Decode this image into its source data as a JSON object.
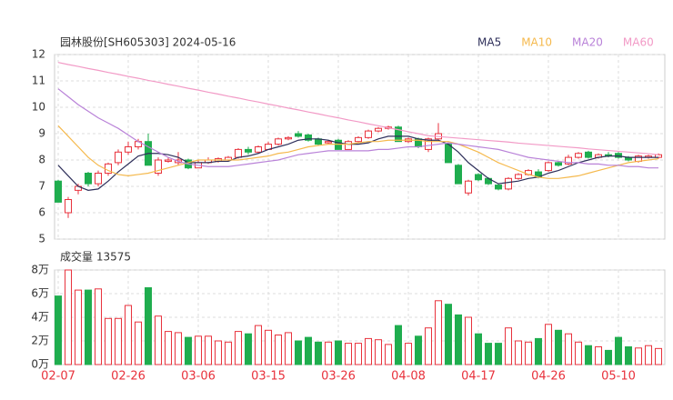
{
  "chart_data": {
    "type": "candlestick",
    "title": "园林股份[SH605303] 2024-05-16",
    "categories": [
      "02-07",
      null,
      null,
      null,
      null,
      null,
      null,
      "02-26",
      null,
      null,
      null,
      null,
      null,
      null,
      "03-06",
      null,
      null,
      null,
      null,
      null,
      null,
      "03-15",
      null,
      null,
      null,
      null,
      null,
      null,
      "03-26",
      null,
      null,
      null,
      null,
      null,
      null,
      "04-08",
      null,
      null,
      null,
      null,
      null,
      null,
      "04-17",
      null,
      null,
      null,
      null,
      null,
      null,
      "04-26",
      null,
      null,
      null,
      null,
      null,
      null,
      "05-10",
      null,
      null,
      null,
      null
    ],
    "open": [
      7.2,
      6.0,
      6.85,
      7.5,
      7.1,
      7.5,
      7.9,
      8.3,
      8.5,
      8.7,
      7.5,
      7.95,
      7.9,
      8.0,
      7.7,
      7.9,
      7.95,
      8.0,
      8.1,
      8.4,
      8.3,
      8.4,
      8.6,
      8.8,
      9.0,
      8.95,
      8.8,
      8.65,
      8.75,
      8.4,
      8.7,
      8.85,
      9.1,
      9.2,
      9.25,
      8.7,
      8.8,
      8.4,
      8.8,
      8.6,
      7.8,
      6.75,
      7.45,
      7.3,
      7.05,
      6.9,
      7.3,
      7.45,
      7.55,
      7.6,
      7.9,
      7.85,
      8.1,
      8.3,
      8.1,
      8.2,
      8.25,
      8.1,
      7.95,
      8.1,
      8.1
    ],
    "high": [
      7.25,
      6.6,
      7.1,
      7.55,
      7.6,
      7.9,
      8.4,
      8.7,
      8.8,
      9.0,
      8.1,
      8.1,
      8.3,
      8.05,
      8.0,
      8.1,
      8.1,
      8.15,
      8.45,
      8.5,
      8.55,
      8.7,
      8.85,
      8.9,
      9.1,
      9.0,
      8.85,
      8.75,
      8.8,
      8.75,
      8.9,
      9.15,
      9.25,
      9.3,
      9.3,
      8.85,
      8.85,
      8.85,
      9.4,
      8.65,
      7.85,
      7.25,
      7.5,
      7.35,
      7.1,
      7.35,
      7.5,
      7.65,
      7.65,
      7.95,
      7.95,
      8.2,
      8.3,
      8.35,
      8.25,
      8.3,
      8.3,
      8.15,
      8.2,
      8.2,
      8.25
    ],
    "low": [
      6.4,
      5.8,
      6.7,
      7.0,
      7.0,
      7.4,
      7.8,
      8.2,
      8.4,
      7.8,
      7.4,
      7.9,
      7.8,
      7.65,
      7.7,
      7.85,
      7.9,
      7.95,
      8.05,
      8.2,
      8.25,
      8.4,
      8.55,
      8.75,
      8.85,
      8.7,
      8.55,
      8.6,
      8.4,
      8.4,
      8.65,
      8.8,
      9.05,
      9.15,
      8.7,
      8.65,
      8.45,
      8.3,
      8.75,
      7.9,
      7.1,
      6.65,
      7.2,
      7.05,
      6.85,
      6.85,
      7.25,
      7.4,
      7.3,
      7.55,
      7.75,
      7.8,
      8.05,
      8.05,
      8.05,
      8.1,
      8.05,
      7.95,
      7.9,
      8.05,
      8.05
    ],
    "close": [
      6.4,
      6.5,
      7.0,
      7.1,
      7.5,
      7.85,
      8.3,
      8.5,
      8.7,
      7.8,
      8.0,
      8.0,
      8.0,
      7.7,
      7.9,
      8.0,
      8.05,
      8.1,
      8.4,
      8.3,
      8.5,
      8.6,
      8.8,
      8.85,
      8.9,
      8.75,
      8.6,
      8.7,
      8.4,
      8.7,
      8.85,
      9.1,
      9.2,
      9.25,
      8.7,
      8.8,
      8.5,
      8.8,
      9.0,
      7.9,
      7.1,
      7.2,
      7.25,
      7.1,
      6.9,
      7.3,
      7.45,
      7.6,
      7.35,
      7.9,
      7.8,
      8.1,
      8.25,
      8.1,
      8.2,
      8.15,
      8.1,
      8.0,
      8.15,
      8.15,
      8.2
    ],
    "up_color": "#e8323c",
    "down_color": "#1fad4e",
    "ylim": [
      5,
      12
    ],
    "yticks": [
      5,
      6,
      7,
      8,
      9,
      10,
      11,
      12
    ],
    "grid": true,
    "series": [
      {
        "name": "MA5",
        "color": "#2e2f5a",
        "values": [
          7.8,
          7.4,
          7.0,
          6.85,
          6.9,
          7.2,
          7.55,
          7.85,
          8.15,
          8.25,
          8.25,
          8.2,
          8.1,
          7.9,
          7.9,
          7.9,
          7.95,
          7.95,
          8.1,
          8.15,
          8.25,
          8.4,
          8.5,
          8.6,
          8.75,
          8.8,
          8.8,
          8.75,
          8.65,
          8.6,
          8.6,
          8.65,
          8.8,
          8.9,
          8.9,
          8.9,
          8.8,
          8.75,
          8.75,
          8.6,
          8.3,
          7.9,
          7.6,
          7.3,
          7.1,
          7.15,
          7.2,
          7.3,
          7.35,
          7.5,
          7.6,
          7.75,
          7.9,
          8.0,
          8.1,
          8.15,
          8.15,
          8.1,
          8.1,
          8.1,
          8.1
        ]
      },
      {
        "name": "MA10",
        "color": "#f5b94d",
        "values": [
          9.3,
          8.9,
          8.5,
          8.1,
          7.8,
          7.6,
          7.45,
          7.4,
          7.45,
          7.5,
          7.6,
          7.7,
          7.8,
          7.9,
          8.0,
          8.0,
          8.0,
          8.0,
          8.0,
          8.05,
          8.1,
          8.15,
          8.25,
          8.3,
          8.4,
          8.5,
          8.55,
          8.6,
          8.6,
          8.6,
          8.65,
          8.7,
          8.7,
          8.75,
          8.75,
          8.75,
          8.75,
          8.7,
          8.7,
          8.7,
          8.6,
          8.45,
          8.3,
          8.1,
          7.9,
          7.75,
          7.6,
          7.45,
          7.35,
          7.3,
          7.3,
          7.35,
          7.4,
          7.5,
          7.6,
          7.7,
          7.8,
          7.9,
          7.95,
          8.0,
          8.05
        ]
      },
      {
        "name": "MA20",
        "color": "#b982d8",
        "values": [
          10.7,
          10.4,
          10.1,
          9.85,
          9.6,
          9.4,
          9.2,
          8.95,
          8.7,
          8.5,
          8.3,
          8.1,
          7.95,
          7.85,
          7.8,
          7.75,
          7.75,
          7.75,
          7.8,
          7.85,
          7.9,
          7.95,
          8.0,
          8.1,
          8.2,
          8.25,
          8.3,
          8.35,
          8.35,
          8.35,
          8.35,
          8.35,
          8.4,
          8.4,
          8.45,
          8.5,
          8.5,
          8.55,
          8.6,
          8.65,
          8.6,
          8.55,
          8.5,
          8.45,
          8.4,
          8.3,
          8.2,
          8.1,
          8.05,
          8.0,
          7.95,
          7.9,
          7.9,
          7.85,
          7.85,
          7.8,
          7.8,
          7.75,
          7.75,
          7.7,
          7.7
        ]
      },
      {
        "name": "MA60",
        "color": "#f29ac6",
        "values": [
          11.7,
          11.62,
          11.55,
          11.47,
          11.4,
          11.32,
          11.25,
          11.17,
          11.1,
          11.02,
          10.95,
          10.87,
          10.8,
          10.72,
          10.65,
          10.57,
          10.5,
          10.42,
          10.35,
          10.27,
          10.2,
          10.12,
          10.05,
          9.97,
          9.9,
          9.82,
          9.75,
          9.67,
          9.6,
          9.52,
          9.45,
          9.37,
          9.3,
          9.22,
          9.15,
          9.07,
          9.0,
          8.92,
          8.89,
          8.86,
          8.83,
          8.8,
          8.77,
          8.74,
          8.71,
          8.68,
          8.64,
          8.61,
          8.58,
          8.55,
          8.52,
          8.49,
          8.46,
          8.42,
          8.39,
          8.36,
          8.33,
          8.3,
          8.27,
          8.24,
          8.2
        ]
      }
    ],
    "volume": {
      "title": "成交量 13575",
      "values": [
        5.8,
        8.0,
        6.3,
        6.3,
        6.4,
        3.9,
        3.9,
        5.0,
        3.6,
        6.5,
        4.1,
        2.8,
        2.7,
        2.3,
        2.4,
        2.4,
        2.0,
        1.9,
        2.8,
        2.6,
        3.3,
        2.9,
        2.5,
        2.7,
        2.0,
        2.3,
        1.9,
        1.9,
        2.0,
        1.8,
        1.8,
        2.2,
        2.1,
        1.7,
        3.3,
        1.8,
        2.4,
        3.1,
        5.4,
        5.1,
        4.2,
        4.0,
        2.6,
        1.8,
        1.8,
        3.1,
        2.0,
        1.9,
        2.2,
        3.4,
        2.9,
        2.6,
        1.9,
        1.6,
        1.5,
        1.2,
        2.3,
        1.5,
        1.4,
        1.6,
        1.3575
      ],
      "ylim": [
        0,
        8
      ],
      "yticks": [
        {
          "value": 0,
          "label": "0万"
        },
        {
          "value": 2,
          "label": "2万"
        },
        {
          "value": 4,
          "label": "4万"
        },
        {
          "value": 6,
          "label": "6万"
        },
        {
          "value": 8,
          "label": "8万"
        }
      ]
    }
  }
}
